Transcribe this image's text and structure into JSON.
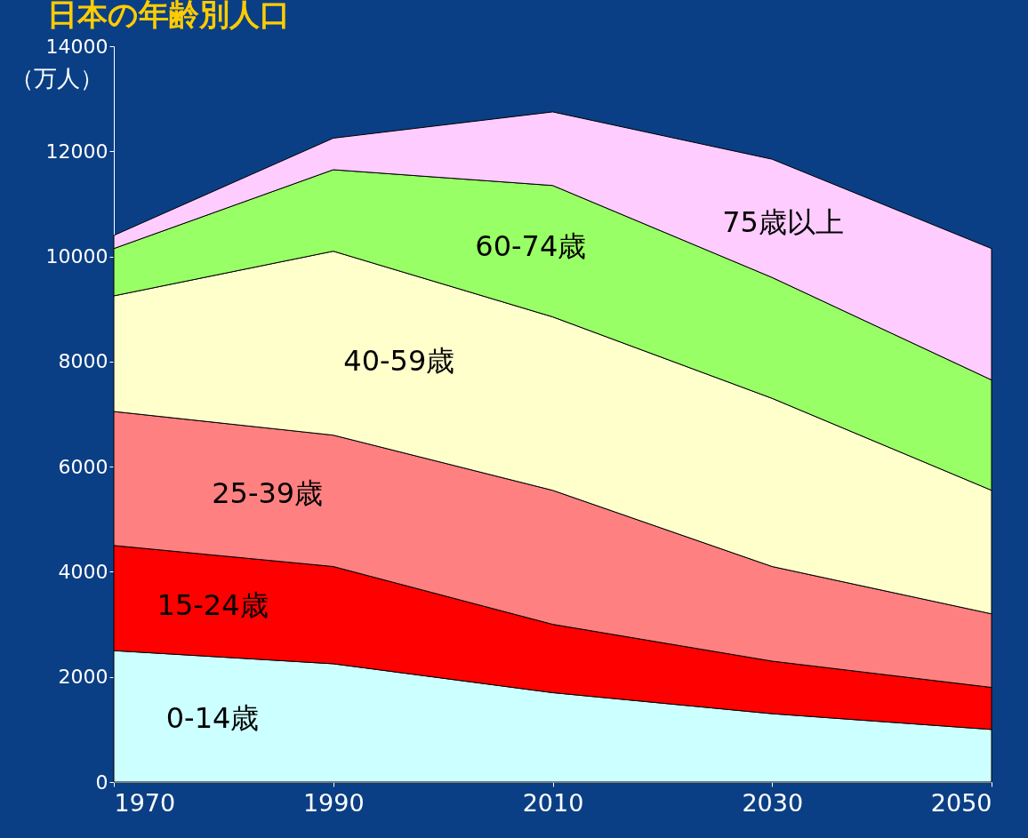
{
  "chart_data": {
    "type": "area",
    "stacked": true,
    "title": "日本の年齢別人口",
    "ylabel": "（万人）",
    "x": [
      1970,
      1990,
      2010,
      2030,
      2050
    ],
    "xlim": [
      1970,
      2050
    ],
    "xticks": [
      1970,
      1990,
      2010,
      2030,
      2050
    ],
    "ylim": [
      0,
      14000
    ],
    "yticks": [
      0,
      2000,
      4000,
      6000,
      8000,
      10000,
      12000,
      14000
    ],
    "grid": false,
    "legend": false,
    "series": [
      {
        "name": "0-14歳",
        "color": "#ccffff",
        "values": [
          2500,
          2250,
          1700,
          1300,
          1000
        ]
      },
      {
        "name": "15-24歳",
        "color": "#ff0000",
        "values": [
          2000,
          1850,
          1300,
          1000,
          800
        ]
      },
      {
        "name": "25-39歳",
        "color": "#ff8080",
        "values": [
          2550,
          2500,
          2550,
          1800,
          1400
        ]
      },
      {
        "name": "40-59歳",
        "color": "#ffffcc",
        "values": [
          2200,
          3500,
          3300,
          3200,
          2350
        ]
      },
      {
        "name": "60-74歳",
        "color": "#99ff66",
        "values": [
          900,
          1550,
          2500,
          2300,
          2100
        ]
      },
      {
        "name": "75歳以上",
        "color": "#ffccff",
        "values": [
          250,
          600,
          1400,
          2250,
          2500
        ]
      }
    ]
  }
}
